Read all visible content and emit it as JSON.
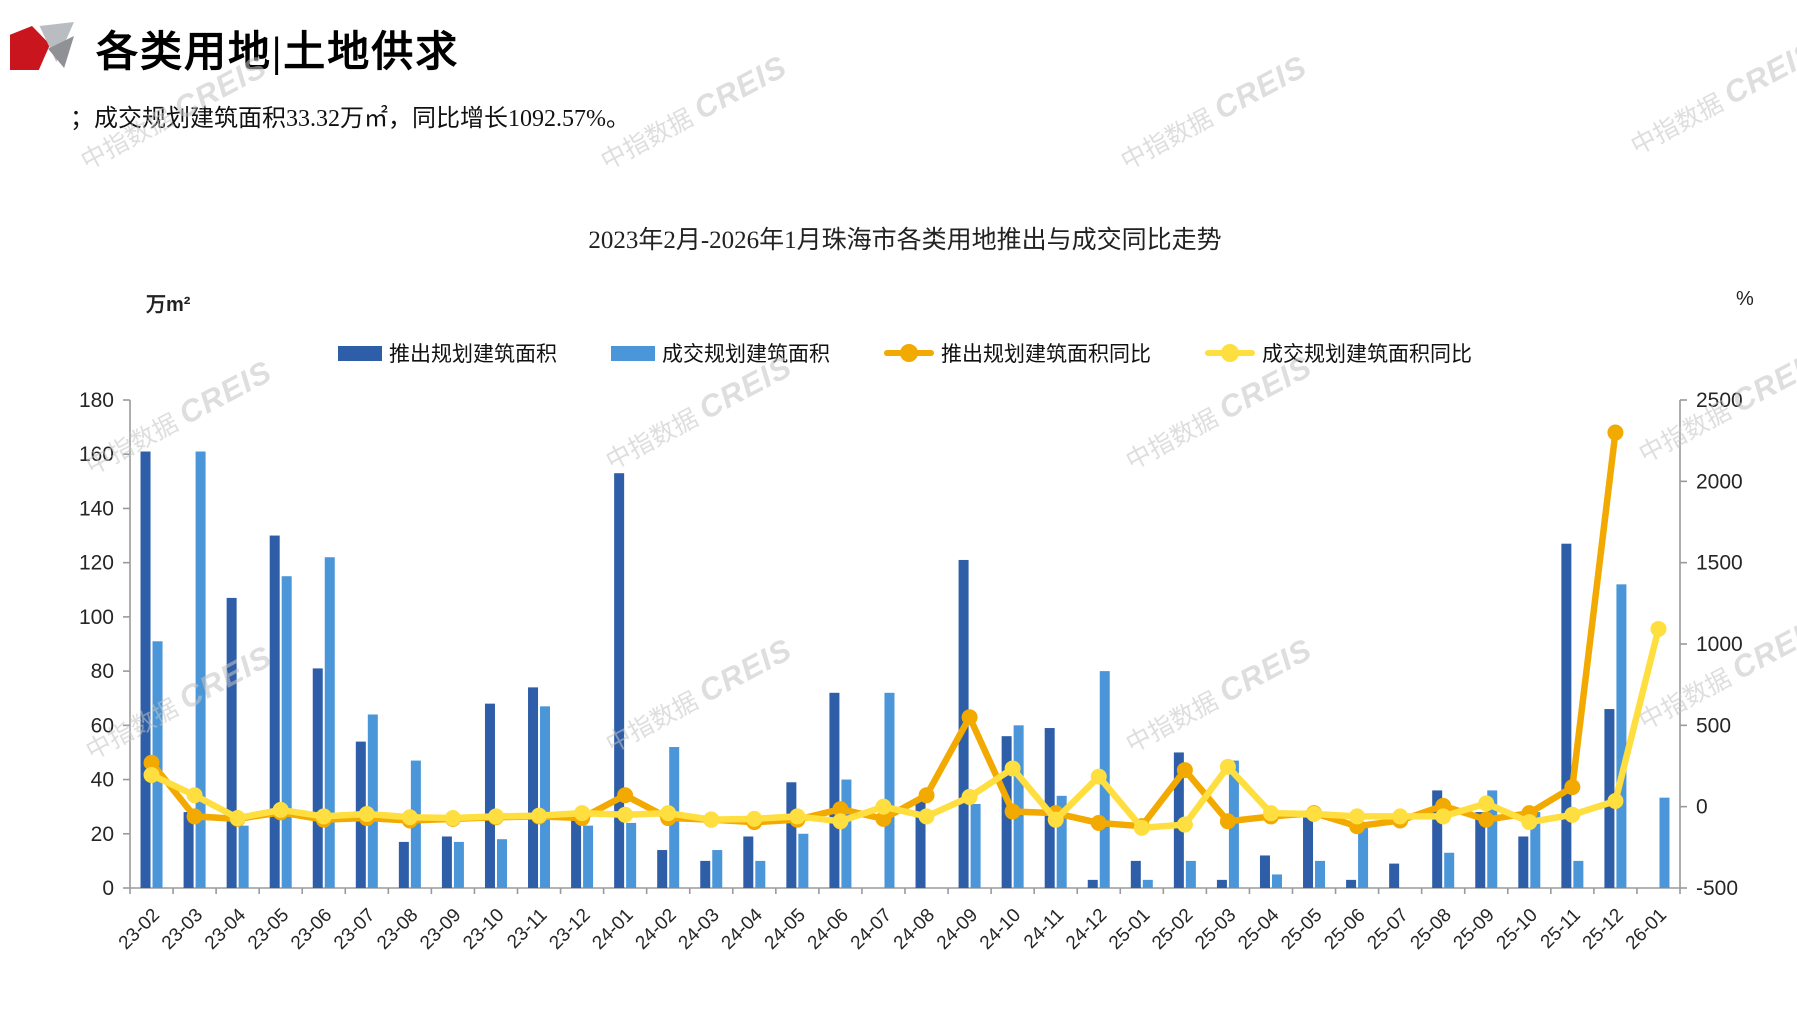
{
  "header": {
    "title": "各类用地|土地供求",
    "subtitle": "；成交规划建筑面积33.32万㎡，同比增长1092.57%。"
  },
  "watermark": {
    "cn": "中指数据",
    "en": "CREIS"
  },
  "chart": {
    "title": "2023年2月-2026年1月珠海市各类用地推出与成交同比走势",
    "unit_left": "万m²",
    "unit_right": "%",
    "colors": {
      "dark_blue": "#2e5ea8",
      "light_blue": "#4b96d8",
      "orange": "#f2a900",
      "yellow": "#ffde3f",
      "axis_line": "#9a9a9a",
      "axis_text": "#262626"
    },
    "legend": [
      {
        "label": "推出规划建筑面积",
        "type": "bar",
        "color": "#2e5ea8"
      },
      {
        "label": "成交规划建筑面积",
        "type": "bar",
        "color": "#4b96d8"
      },
      {
        "label": "推出规划建筑面积同比",
        "type": "line",
        "color": "#f2a900"
      },
      {
        "label": "成交规划建筑面积同比",
        "type": "line",
        "color": "#ffde3f"
      }
    ]
  },
  "chart_data": {
    "type": "bar",
    "subtype": "combo-bar-line-dual-axis",
    "title": "2023年2月-2026年1月珠海市各类用地推出与成交同比走势",
    "xlabel": "",
    "ylabel_left": "万m²",
    "ylabel_right": "%",
    "ylim_left": [
      0,
      180
    ],
    "yticks_left": [
      0,
      20,
      40,
      60,
      80,
      100,
      120,
      140,
      160,
      180
    ],
    "ylim_right": [
      -500,
      2500
    ],
    "yticks_right": [
      -500,
      0,
      500,
      1000,
      1500,
      2000,
      2500
    ],
    "grid": false,
    "legend_position": "top",
    "categories": [
      "23-02",
      "23-03",
      "23-04",
      "23-05",
      "23-06",
      "23-07",
      "23-08",
      "23-09",
      "23-10",
      "23-11",
      "23-12",
      "24-01",
      "24-02",
      "24-03",
      "24-04",
      "24-05",
      "24-06",
      "24-07",
      "24-08",
      "24-09",
      "24-10",
      "24-11",
      "24-12",
      "25-01",
      "25-02",
      "25-03",
      "25-04",
      "25-05",
      "25-06",
      "25-07",
      "25-08",
      "25-09",
      "25-10",
      "25-11",
      "25-12",
      "26-01"
    ],
    "series": [
      {
        "name": "推出规划建筑面积",
        "type": "bar",
        "axis": "left",
        "color": "#2e5ea8",
        "values": [
          161,
          28,
          107,
          130,
          81,
          54,
          17,
          19,
          68,
          74,
          27,
          153,
          14,
          10,
          19,
          39,
          72,
          0,
          32,
          121,
          56,
          59,
          3,
          10,
          50,
          3,
          12,
          26,
          3,
          9,
          36,
          28,
          19,
          127,
          66,
          0
        ]
      },
      {
        "name": "成交规划建筑面积",
        "type": "bar",
        "axis": "left",
        "color": "#4b96d8",
        "values": [
          91,
          161,
          23,
          115,
          122,
          64,
          47,
          17,
          18,
          67,
          23,
          24,
          52,
          14,
          10,
          20,
          40,
          72,
          0,
          31,
          60,
          34,
          80,
          3,
          10,
          47,
          5,
          10,
          24,
          0,
          13,
          36,
          28,
          10,
          112,
          33.32
        ]
      },
      {
        "name": "推出规划建筑面积同比",
        "type": "line",
        "axis": "right",
        "color": "#f2a900",
        "values": [
          270,
          -60,
          -75,
          -35,
          -80,
          -70,
          -85,
          -75,
          -65,
          -60,
          -70,
          70,
          -70,
          -80,
          -95,
          -80,
          -15,
          -75,
          70,
          550,
          -30,
          -40,
          -100,
          -120,
          225,
          -90,
          -60,
          -40,
          -120,
          -85,
          5,
          -80,
          -40,
          120,
          2300,
          null
        ]
      },
      {
        "name": "成交规划建筑面积同比",
        "type": "line",
        "axis": "right",
        "color": "#ffde3f",
        "values": [
          195,
          70,
          -70,
          -20,
          -60,
          -45,
          -65,
          -70,
          -60,
          -55,
          -40,
          -50,
          -40,
          -80,
          -75,
          -60,
          -90,
          0,
          -60,
          60,
          235,
          -80,
          185,
          -130,
          -110,
          245,
          -40,
          -45,
          -60,
          -60,
          -60,
          20,
          -95,
          -50,
          35,
          1092.57
        ]
      }
    ]
  }
}
